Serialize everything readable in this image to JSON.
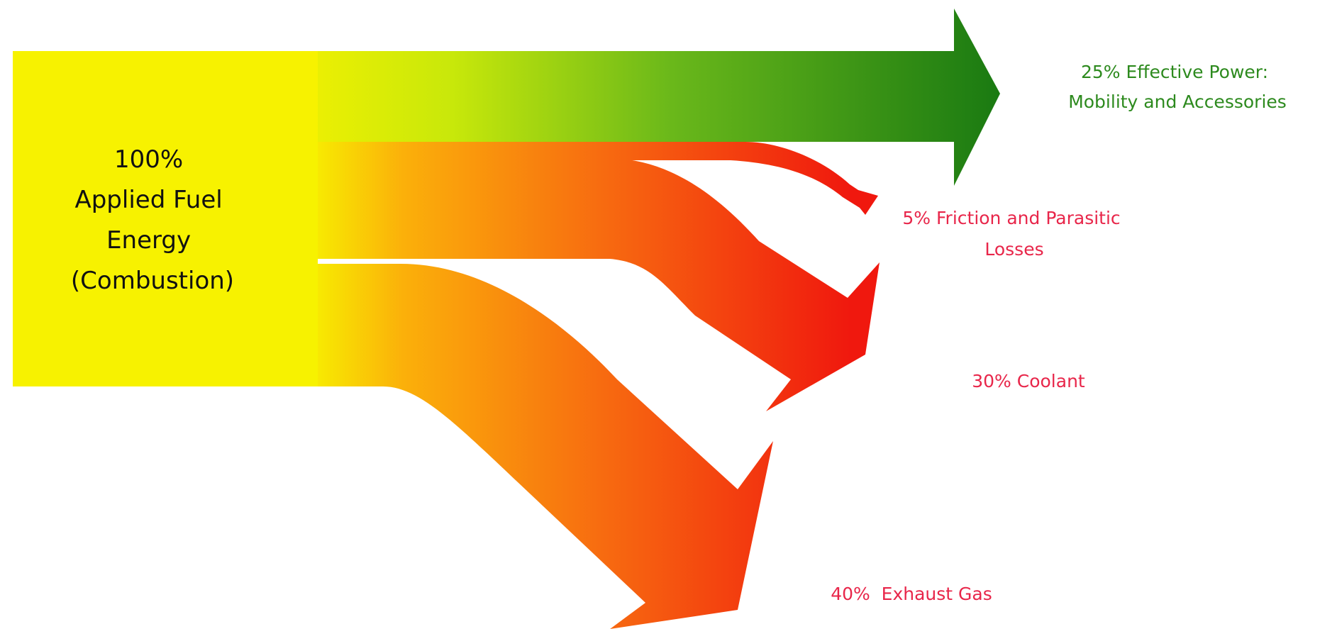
{
  "source": {
    "label_lines": [
      "100%",
      "Applied Fuel",
      "Energy",
      "(Combustion)"
    ],
    "percent": 100,
    "color": "#f7f200"
  },
  "flows": [
    {
      "id": "effective-power",
      "percent": 25,
      "label_lines": [
        "25% Effective Power:",
        "Mobility and Accessories"
      ],
      "label_color": "#2d8a1e",
      "end_color": "#1a7a12"
    },
    {
      "id": "friction",
      "percent": 5,
      "label_lines": [
        "5% Friction and Parasitic",
        "Losses"
      ],
      "label_color": "#e8264a",
      "end_color": "#f0180e"
    },
    {
      "id": "coolant",
      "percent": 30,
      "label_lines": [
        "30% Coolant"
      ],
      "label_color": "#e8264a",
      "end_color": "#f0180e"
    },
    {
      "id": "exhaust",
      "percent": 40,
      "label_lines": [
        "40%  Exhaust Gas"
      ],
      "label_color": "#e8264a",
      "end_color": "#f0180e"
    }
  ],
  "colors": {
    "yellow": "#f7f200",
    "orange": "#fbb00a",
    "red": "#f0180e",
    "green": "#1a7a12",
    "lime": "#a8d80c"
  }
}
